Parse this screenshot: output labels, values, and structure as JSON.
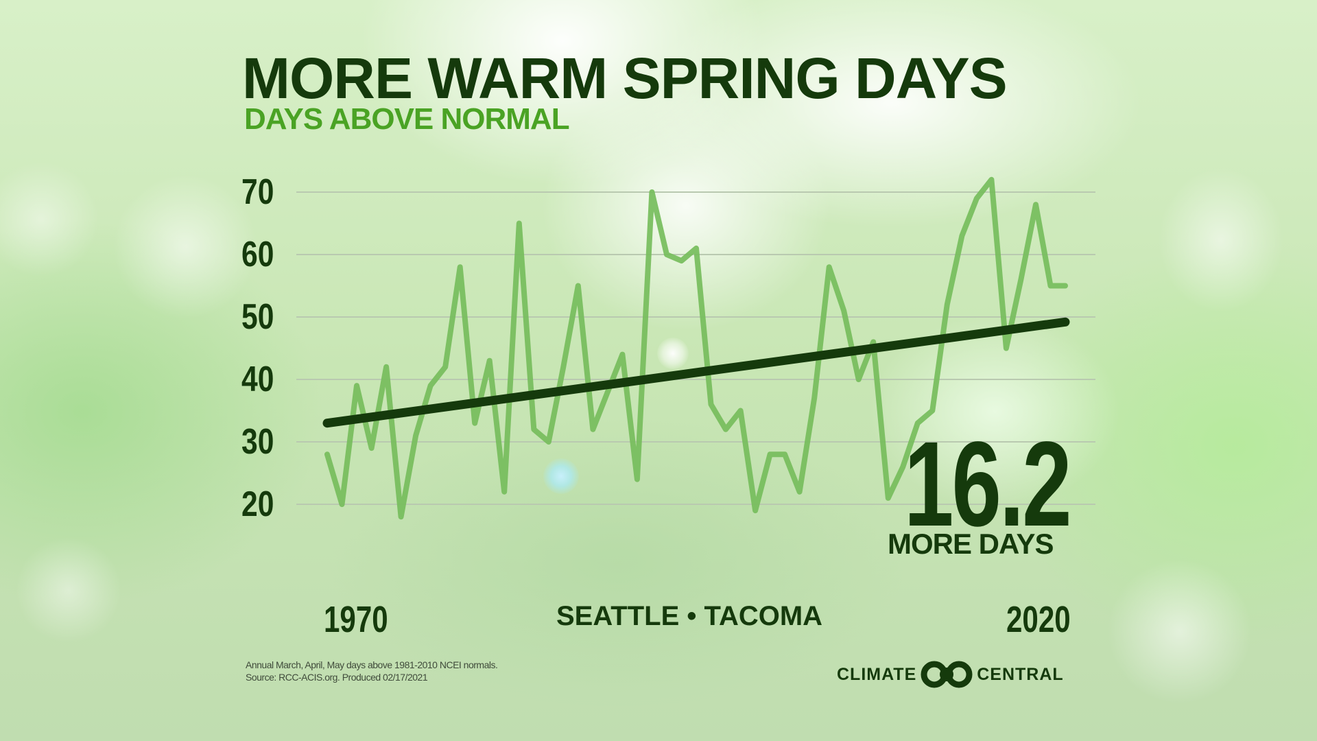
{
  "header": {
    "title": "MORE WARM SPRING DAYS",
    "subtitle": "DAYS ABOVE NORMAL"
  },
  "callout": {
    "value": "16.2",
    "label": "MORE DAYS"
  },
  "axis": {
    "x_start": "1970",
    "x_end": "2020",
    "location": "SEATTLE • TACOMA",
    "y_ticks": [
      "70",
      "60",
      "50",
      "40",
      "30",
      "20"
    ]
  },
  "footnote": {
    "line1": "Annual March, April, May days above 1981-2010 NCEI normals.",
    "line2": "Source: RCC-ACIS.org. Produced 02/17/2021"
  },
  "logo": {
    "left": "CLIMATE",
    "right": "CENTRAL",
    "icon": "climate-central-rings-icon"
  },
  "colors": {
    "title": "#153a0c",
    "subtitle": "#4aa324",
    "series": "#76bd5c",
    "trend": "#153a0c",
    "gridline": "#b9c9b0"
  },
  "chart_data": {
    "type": "line",
    "title": "MORE WARM SPRING DAYS",
    "subtitle": "DAYS ABOVE NORMAL",
    "xlabel": "SEATTLE • TACOMA",
    "ylabel": "",
    "x_tick_labels": [
      "1970",
      "2020"
    ],
    "y_ticks": [
      20,
      30,
      40,
      50,
      60,
      70
    ],
    "ylim": [
      15,
      73
    ],
    "xlim": [
      1970,
      2020
    ],
    "grid": true,
    "legend": "none",
    "annotations": [
      "16.2 MORE DAYS"
    ],
    "x": [
      1970,
      1971,
      1972,
      1973,
      1974,
      1975,
      1976,
      1977,
      1978,
      1979,
      1980,
      1981,
      1982,
      1983,
      1984,
      1985,
      1986,
      1987,
      1988,
      1989,
      1990,
      1991,
      1992,
      1993,
      1994,
      1995,
      1996,
      1997,
      1998,
      1999,
      2000,
      2001,
      2002,
      2003,
      2004,
      2005,
      2006,
      2007,
      2008,
      2009,
      2010,
      2011,
      2012,
      2013,
      2014,
      2015,
      2016,
      2017,
      2018,
      2019,
      2020
    ],
    "series": [
      {
        "name": "Days above normal",
        "values": [
          28,
          20,
          39,
          29,
          42,
          18,
          31,
          39,
          42,
          58,
          33,
          43,
          22,
          65,
          32,
          30,
          42,
          55,
          32,
          38,
          44,
          24,
          70,
          60,
          59,
          61,
          36,
          32,
          35,
          19,
          28,
          28,
          22,
          37,
          58,
          51,
          40,
          46,
          21,
          26,
          33,
          35,
          52,
          63,
          69,
          72,
          45,
          56,
          68,
          55,
          55
        ]
      },
      {
        "name": "Trend",
        "values": [
          33.0,
          49.2
        ],
        "x": [
          1970,
          2020
        ]
      }
    ]
  }
}
